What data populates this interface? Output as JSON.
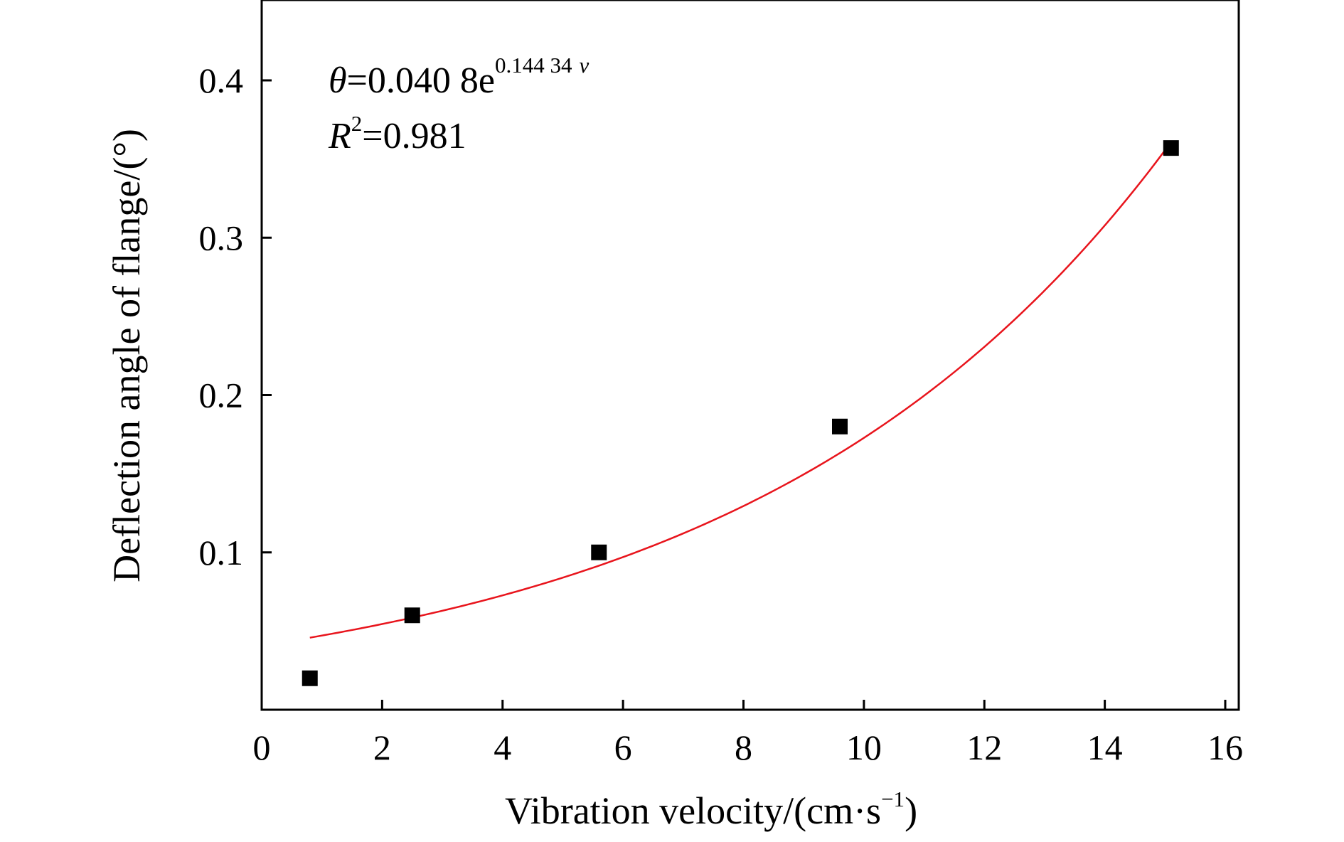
{
  "chart_data": {
    "type": "scatter",
    "xlabel": {
      "main": "Vibration velocity/(cm·s",
      "sup": "−1",
      "close": ")"
    },
    "ylabel": "Deflection angle of flange/(°)",
    "xlim": [
      0,
      16
    ],
    "ylim": [
      0,
      0.45
    ],
    "xticks": [
      0,
      2,
      4,
      6,
      8,
      10,
      12,
      14,
      16
    ],
    "yticks": [
      0.1,
      0.2,
      0.3,
      0.4
    ],
    "xtick_labels": [
      "0",
      "2",
      "4",
      "6",
      "8",
      "10",
      "12",
      "14",
      "16"
    ],
    "ytick_labels": [
      "0.1",
      "0.2",
      "0.3",
      "0.4"
    ],
    "grid": false,
    "series": [
      {
        "kind": "points",
        "marker": "square",
        "color": "#000000",
        "x": [
          0.8,
          2.5,
          5.6,
          9.6,
          15.1
        ],
        "y": [
          0.02,
          0.06,
          0.1,
          0.18,
          0.357
        ]
      },
      {
        "kind": "fit-curve",
        "color": "#e8141c",
        "coef_a": 0.0408,
        "coef_b": 0.14434,
        "x_from": 0.8,
        "x_to": 15.1
      }
    ],
    "annotations": {
      "equation": {
        "symbol": "θ",
        "body": "=0.040 8e",
        "exponent": "0.144 34",
        "exponent_var": "v"
      },
      "r_squared": {
        "symbol": "R",
        "sup": "2",
        "body": "=0.981"
      }
    }
  }
}
